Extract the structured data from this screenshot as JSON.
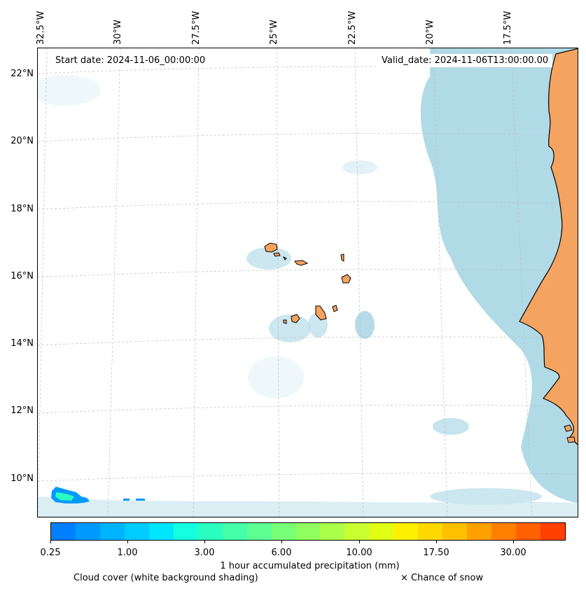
{
  "header": {
    "start_date": "Start date: 2024-11-06_00:00:00",
    "valid_date": "Valid_date: 2024-11-06T13:00:00.00"
  },
  "map": {
    "longitude_labels": [
      "32.5°W",
      "30°W",
      "27.5°W",
      "25°W",
      "22.5°W",
      "20°W",
      "17.5°W"
    ],
    "latitude_labels": [
      "22°N",
      "20°N",
      "18°N",
      "16°N",
      "14°N",
      "12°N",
      "10°N"
    ],
    "colors": {
      "land": "#f4a460",
      "cloud": "#add8e6",
      "coastline": "#000000",
      "gridline": "#bbbbbb"
    }
  },
  "colorbar": {
    "colors": [
      "#0080ff",
      "#0099ff",
      "#00b3ff",
      "#00ccff",
      "#00e6ff",
      "#14ffe0",
      "#2affc0",
      "#44ffa8",
      "#5cff90",
      "#78ff78",
      "#90ff60",
      "#acff48",
      "#c8ff30",
      "#e0ff14",
      "#fff000",
      "#ffd800",
      "#ffc000",
      "#ffa000",
      "#ff8000",
      "#ff6000",
      "#ff4000"
    ],
    "tick_labels": [
      "0.25",
      "1.00",
      "3.00",
      "6.00",
      "10.00",
      "17.50",
      "30.00"
    ],
    "label": "1 hour accumulated precipitation (mm)"
  },
  "legend": {
    "cloud_label": "Cloud cover (white background shading)",
    "snow_label": "× Chance of snow"
  }
}
